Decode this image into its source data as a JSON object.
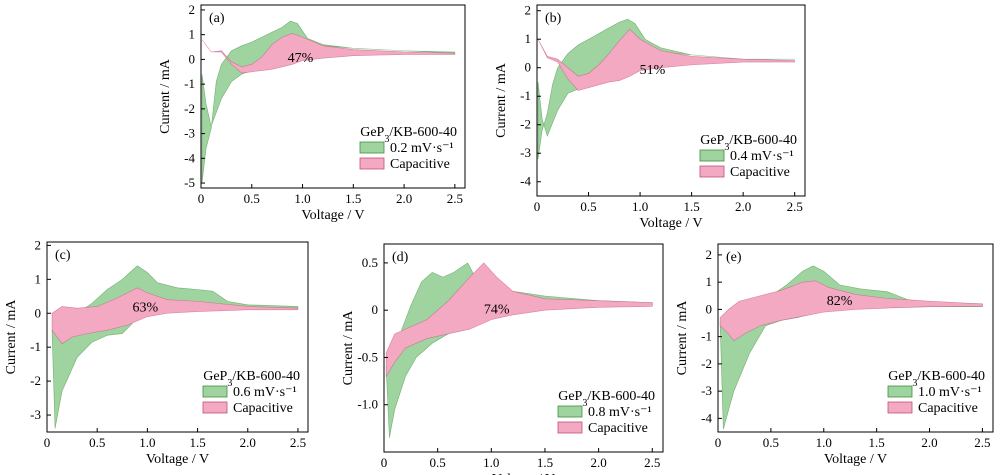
{
  "colors": {
    "rate_fill": "#9fd39f",
    "rate_edge": "#3f8f3f",
    "cap_fill": "#f4a9c3",
    "cap_edge": "#c0507a"
  },
  "chart_data": [
    {
      "type": "area",
      "label": "(a)",
      "percent": "47%",
      "xlabel": "Voltage / V",
      "ylabel": "Current / mA",
      "xlim": [
        0,
        2.6
      ],
      "ylim": [
        -5.2,
        2.2
      ],
      "xticks": [
        "0",
        "0.5",
        "1.0",
        "1.5",
        "2.0",
        "2.5"
      ],
      "xtick_values": [
        0,
        0.5,
        1.0,
        1.5,
        2.0,
        2.5
      ],
      "yticks": [
        "2",
        "1",
        "0",
        "-1",
        "-2",
        "-3",
        "-4",
        "-5"
      ],
      "ytick_values": [
        2,
        1,
        0,
        -1,
        -2,
        -3,
        -4,
        -5
      ],
      "legend_title": "GeP3/KB-600-40",
      "legend_title_main": "GeP",
      "legend_title_sub": "3",
      "legend_title_rest": "/KB-600-40",
      "series": [
        {
          "name": "0.2 mV·s⁻¹"
        },
        {
          "name": "Capacitive"
        }
      ],
      "cv_upper": [
        [
          0.01,
          -0.6
        ],
        [
          0.05,
          -1.8
        ],
        [
          0.1,
          -2.7
        ],
        [
          0.2,
          -1.6
        ],
        [
          0.3,
          -0.9
        ],
        [
          0.4,
          -0.6
        ],
        [
          0.5,
          -0.45
        ],
        [
          0.6,
          -0.3
        ],
        [
          0.7,
          -0.1
        ],
        [
          0.8,
          0.15
        ],
        [
          0.9,
          0.45
        ],
        [
          1.0,
          0.5
        ],
        [
          1.2,
          0.55
        ],
        [
          1.5,
          0.45
        ],
        [
          2.0,
          0.35
        ],
        [
          2.5,
          0.3
        ]
      ],
      "cv_lower": [
        [
          0.01,
          -5.0
        ],
        [
          0.05,
          -3.6
        ],
        [
          0.1,
          -2.8
        ],
        [
          0.15,
          -0.9
        ],
        [
          0.2,
          -0.2
        ],
        [
          0.3,
          0.35
        ],
        [
          0.4,
          0.55
        ],
        [
          0.5,
          0.7
        ],
        [
          0.6,
          0.9
        ],
        [
          0.7,
          1.1
        ],
        [
          0.8,
          1.3
        ],
        [
          0.88,
          1.55
        ],
        [
          0.95,
          1.45
        ],
        [
          1.05,
          0.85
        ],
        [
          1.2,
          0.6
        ],
        [
          1.5,
          0.45
        ],
        [
          2.0,
          0.35
        ],
        [
          2.5,
          0.25
        ]
      ],
      "cap_upper": [
        [
          0.01,
          0.8
        ],
        [
          0.1,
          0.3
        ],
        [
          0.2,
          0.35
        ],
        [
          0.3,
          -0.1
        ],
        [
          0.4,
          -0.3
        ],
        [
          0.5,
          -0.2
        ],
        [
          0.6,
          0.1
        ],
        [
          0.7,
          0.6
        ],
        [
          0.8,
          0.9
        ],
        [
          0.9,
          1.05
        ],
        [
          1.0,
          0.9
        ],
        [
          1.2,
          0.55
        ],
        [
          1.5,
          0.4
        ],
        [
          2.0,
          0.3
        ],
        [
          2.5,
          0.25
        ]
      ],
      "cap_lower": [
        [
          0.01,
          0.8
        ],
        [
          0.1,
          0.3
        ],
        [
          0.2,
          0.3
        ],
        [
          0.3,
          -0.2
        ],
        [
          0.4,
          -0.55
        ],
        [
          0.5,
          -0.5
        ],
        [
          0.6,
          -0.45
        ],
        [
          0.7,
          -0.4
        ],
        [
          0.8,
          -0.3
        ],
        [
          0.9,
          -0.2
        ],
        [
          1.0,
          -0.05
        ],
        [
          1.2,
          0.05
        ],
        [
          1.5,
          0.15
        ],
        [
          2.0,
          0.2
        ],
        [
          2.5,
          0.2
        ]
      ]
    },
    {
      "type": "area",
      "label": "(b)",
      "percent": "51%",
      "xlabel": "Voltage / V",
      "ylabel": "Current / mA",
      "xlim": [
        0,
        2.6
      ],
      "ylim": [
        -4.5,
        2.2
      ],
      "xticks": [
        "0",
        "0.5",
        "1.0",
        "1.5",
        "2.0",
        "2.5"
      ],
      "xtick_values": [
        0,
        0.5,
        1.0,
        1.5,
        2.0,
        2.5
      ],
      "yticks": [
        "2",
        "1",
        "0",
        "-1",
        "-2",
        "-3",
        "-4"
      ],
      "ytick_values": [
        2,
        1,
        0,
        -1,
        -2,
        -3,
        -4
      ],
      "legend_title": "GeP3/KB-600-40",
      "legend_title_main": "GeP",
      "legend_title_sub": "3",
      "legend_title_rest": "/KB-600-40",
      "series": [
        {
          "name": "0.4 mV·s⁻¹"
        },
        {
          "name": "Capacitive"
        }
      ],
      "cv_upper": [
        [
          0.01,
          -0.5
        ],
        [
          0.05,
          -1.8
        ],
        [
          0.1,
          -2.4
        ],
        [
          0.2,
          -1.5
        ],
        [
          0.3,
          -0.9
        ],
        [
          0.4,
          -0.75
        ],
        [
          0.5,
          -0.55
        ],
        [
          0.6,
          -0.35
        ],
        [
          0.7,
          -0.15
        ],
        [
          0.8,
          0.2
        ],
        [
          0.9,
          0.55
        ],
        [
          1.0,
          0.6
        ],
        [
          1.2,
          0.55
        ],
        [
          1.5,
          0.45
        ],
        [
          2.0,
          0.3
        ],
        [
          2.5,
          0.3
        ]
      ],
      "cv_lower": [
        [
          0.01,
          -3.2
        ],
        [
          0.05,
          -2.2
        ],
        [
          0.1,
          -1.6
        ],
        [
          0.15,
          -0.6
        ],
        [
          0.2,
          0.0
        ],
        [
          0.3,
          0.5
        ],
        [
          0.4,
          0.8
        ],
        [
          0.5,
          1.0
        ],
        [
          0.6,
          1.2
        ],
        [
          0.7,
          1.4
        ],
        [
          0.8,
          1.6
        ],
        [
          0.88,
          1.7
        ],
        [
          0.95,
          1.55
        ],
        [
          1.05,
          1.0
        ],
        [
          1.2,
          0.7
        ],
        [
          1.5,
          0.45
        ],
        [
          2.0,
          0.3
        ],
        [
          2.5,
          0.3
        ]
      ],
      "cap_upper": [
        [
          0.01,
          1.0
        ],
        [
          0.1,
          0.4
        ],
        [
          0.2,
          0.3
        ],
        [
          0.3,
          0.0
        ],
        [
          0.4,
          -0.3
        ],
        [
          0.5,
          -0.2
        ],
        [
          0.6,
          0.1
        ],
        [
          0.7,
          0.5
        ],
        [
          0.8,
          0.95
        ],
        [
          0.9,
          1.35
        ],
        [
          1.0,
          1.0
        ],
        [
          1.2,
          0.6
        ],
        [
          1.5,
          0.4
        ],
        [
          2.0,
          0.3
        ],
        [
          2.5,
          0.25
        ]
      ],
      "cap_lower": [
        [
          0.01,
          1.0
        ],
        [
          0.1,
          0.35
        ],
        [
          0.2,
          0.2
        ],
        [
          0.3,
          -0.4
        ],
        [
          0.4,
          -0.8
        ],
        [
          0.5,
          -0.7
        ],
        [
          0.6,
          -0.6
        ],
        [
          0.7,
          -0.5
        ],
        [
          0.8,
          -0.45
        ],
        [
          0.9,
          -0.3
        ],
        [
          1.0,
          -0.1
        ],
        [
          1.2,
          0.0
        ],
        [
          1.5,
          0.1
        ],
        [
          2.0,
          0.2
        ],
        [
          2.5,
          0.2
        ]
      ]
    },
    {
      "type": "area",
      "label": "(c)",
      "percent": "63%",
      "xlabel": "Voltage / V",
      "ylabel": "Current / mA",
      "xlim": [
        0,
        2.6
      ],
      "ylim": [
        -3.5,
        2.1
      ],
      "xticks": [
        "0",
        "0.5",
        "1.0",
        "1.5",
        "2.0",
        "2.5"
      ],
      "xtick_values": [
        0,
        0.5,
        1.0,
        1.5,
        2.0,
        2.5
      ],
      "yticks": [
        "2",
        "1",
        "0",
        "-1",
        "-2",
        "-3"
      ],
      "ytick_values": [
        2,
        1,
        0,
        -1,
        -2,
        -3
      ],
      "legend_title": "GeP3/KB-600-40",
      "legend_title_main": "GeP",
      "legend_title_sub": "3",
      "legend_title_rest": "/KB-600-40",
      "series": [
        {
          "name": "0.6 mV·s⁻¹"
        },
        {
          "name": "Capacitive"
        }
      ],
      "cv_upper": [
        [
          0.05,
          -0.5
        ],
        [
          0.08,
          -3.4
        ],
        [
          0.15,
          -2.3
        ],
        [
          0.3,
          -1.3
        ],
        [
          0.45,
          -0.85
        ],
        [
          0.6,
          -0.65
        ],
        [
          0.75,
          -0.6
        ],
        [
          0.85,
          -0.3
        ],
        [
          0.95,
          0.1
        ],
        [
          1.1,
          0.3
        ],
        [
          1.3,
          0.35
        ],
        [
          1.5,
          0.3
        ],
        [
          1.8,
          0.2
        ],
        [
          2.5,
          0.15
        ]
      ],
      "cv_lower": [
        [
          0.05,
          -0.5
        ],
        [
          0.1,
          -0.4
        ],
        [
          0.2,
          -0.2
        ],
        [
          0.3,
          0.0
        ],
        [
          0.45,
          0.3
        ],
        [
          0.6,
          0.7
        ],
        [
          0.75,
          1.0
        ],
        [
          0.9,
          1.4
        ],
        [
          1.0,
          1.2
        ],
        [
          1.1,
          0.9
        ],
        [
          1.3,
          0.75
        ],
        [
          1.5,
          0.7
        ],
        [
          1.65,
          0.65
        ],
        [
          1.8,
          0.35
        ],
        [
          2.0,
          0.25
        ],
        [
          2.5,
          0.2
        ]
      ],
      "cap_upper": [
        [
          0.05,
          0.0
        ],
        [
          0.15,
          0.2
        ],
        [
          0.3,
          0.15
        ],
        [
          0.5,
          0.2
        ],
        [
          0.7,
          0.45
        ],
        [
          0.9,
          0.75
        ],
        [
          1.0,
          0.6
        ],
        [
          1.2,
          0.4
        ],
        [
          1.5,
          0.35
        ],
        [
          2.0,
          0.2
        ],
        [
          2.5,
          0.15
        ]
      ],
      "cap_lower": [
        [
          0.05,
          -0.5
        ],
        [
          0.15,
          -0.9
        ],
        [
          0.25,
          -0.7
        ],
        [
          0.4,
          -0.6
        ],
        [
          0.6,
          -0.5
        ],
        [
          0.8,
          -0.35
        ],
        [
          1.0,
          -0.1
        ],
        [
          1.2,
          0.0
        ],
        [
          1.5,
          0.05
        ],
        [
          2.0,
          0.1
        ],
        [
          2.5,
          0.1
        ]
      ]
    },
    {
      "type": "area",
      "label": "(d)",
      "percent": "74%",
      "xlabel": "Voltage / V",
      "ylabel": "Current / mA",
      "xlim": [
        0,
        2.6
      ],
      "ylim": [
        -1.5,
        0.7
      ],
      "xticks": [
        "0",
        "0.5",
        "1.0",
        "1.5",
        "2.0",
        "2.5"
      ],
      "xtick_values": [
        0,
        0.5,
        1.0,
        1.5,
        2.0,
        2.5
      ],
      "yticks": [
        "0.5",
        "0",
        "-0.5",
        "-1.0"
      ],
      "ytick_values": [
        0.5,
        0,
        -0.5,
        -1.0
      ],
      "legend_title": "GeP3/KB-600-40",
      "legend_title_main": "GeP",
      "legend_title_sub": "3",
      "legend_title_rest": "/KB-600-40",
      "series": [
        {
          "name": "0.8 mV·s⁻¹"
        },
        {
          "name": "Capacitive"
        }
      ],
      "cv_upper": [
        [
          0.02,
          -0.6
        ],
        [
          0.05,
          -1.35
        ],
        [
          0.1,
          -1.05
        ],
        [
          0.2,
          -0.7
        ],
        [
          0.3,
          -0.5
        ],
        [
          0.45,
          -0.35
        ],
        [
          0.6,
          -0.25
        ],
        [
          0.75,
          -0.1
        ],
        [
          0.85,
          0.0
        ],
        [
          1.0,
          0.05
        ],
        [
          1.5,
          0.05
        ],
        [
          2.0,
          0.05
        ],
        [
          2.5,
          0.05
        ]
      ],
      "cv_lower": [
        [
          0.02,
          -0.6
        ],
        [
          0.08,
          -0.45
        ],
        [
          0.15,
          -0.25
        ],
        [
          0.25,
          0.05
        ],
        [
          0.35,
          0.3
        ],
        [
          0.45,
          0.4
        ],
        [
          0.55,
          0.35
        ],
        [
          0.65,
          0.4
        ],
        [
          0.78,
          0.5
        ],
        [
          0.85,
          0.35
        ],
        [
          0.95,
          0.3
        ],
        [
          1.2,
          0.2
        ],
        [
          1.5,
          0.15
        ],
        [
          2.0,
          0.1
        ],
        [
          2.5,
          0.08
        ]
      ],
      "cap_upper": [
        [
          0.02,
          -0.45
        ],
        [
          0.1,
          -0.25
        ],
        [
          0.2,
          -0.2
        ],
        [
          0.4,
          -0.1
        ],
        [
          0.6,
          0.1
        ],
        [
          0.8,
          0.35
        ],
        [
          0.93,
          0.5
        ],
        [
          1.05,
          0.35
        ],
        [
          1.2,
          0.2
        ],
        [
          1.5,
          0.12
        ],
        [
          2.0,
          0.1
        ],
        [
          2.5,
          0.08
        ]
      ],
      "cap_lower": [
        [
          0.02,
          -0.7
        ],
        [
          0.1,
          -0.55
        ],
        [
          0.2,
          -0.4
        ],
        [
          0.4,
          -0.3
        ],
        [
          0.6,
          -0.25
        ],
        [
          0.8,
          -0.2
        ],
        [
          1.0,
          -0.1
        ],
        [
          1.2,
          -0.05
        ],
        [
          1.5,
          0.0
        ],
        [
          2.0,
          0.03
        ],
        [
          2.5,
          0.04
        ]
      ]
    },
    {
      "type": "area",
      "label": "(e)",
      "percent": "82%",
      "xlabel": "Voltage / V",
      "ylabel": "Current / mA",
      "xlim": [
        0,
        2.6
      ],
      "ylim": [
        -4.5,
        2.4
      ],
      "xticks": [
        "0",
        "0.5",
        "1.0",
        "1.5",
        "2.0",
        "2.5"
      ],
      "xtick_values": [
        0,
        0.5,
        1.0,
        1.5,
        2.0,
        2.5
      ],
      "yticks": [
        "2",
        "1",
        "0",
        "-1",
        "-2",
        "-3",
        "-4"
      ],
      "ytick_values": [
        2,
        1,
        0,
        -1,
        -2,
        -3,
        -4
      ],
      "legend_title": "GeP3/KB-600-40",
      "legend_title_main": "GeP",
      "legend_title_sub": "3",
      "legend_title_rest": "/KB-600-40",
      "series": [
        {
          "name": "1.0 mV·s⁻¹"
        },
        {
          "name": "Capacitive"
        }
      ],
      "cv_upper": [
        [
          0.02,
          -0.5
        ],
        [
          0.05,
          -4.4
        ],
        [
          0.15,
          -3.0
        ],
        [
          0.3,
          -1.6
        ],
        [
          0.45,
          -0.6
        ],
        [
          0.6,
          -0.4
        ],
        [
          0.75,
          -0.3
        ],
        [
          0.9,
          -0.15
        ],
        [
          1.1,
          0.05
        ],
        [
          1.5,
          0.05
        ],
        [
          2.0,
          0.1
        ],
        [
          2.5,
          0.1
        ]
      ],
      "cv_lower": [
        [
          0.02,
          -0.5
        ],
        [
          0.1,
          -0.3
        ],
        [
          0.2,
          -0.1
        ],
        [
          0.35,
          0.2
        ],
        [
          0.5,
          0.5
        ],
        [
          0.65,
          0.9
        ],
        [
          0.8,
          1.4
        ],
        [
          0.9,
          1.6
        ],
        [
          1.0,
          1.4
        ],
        [
          1.15,
          0.9
        ],
        [
          1.35,
          0.75
        ],
        [
          1.6,
          0.65
        ],
        [
          1.8,
          0.35
        ],
        [
          2.0,
          0.25
        ],
        [
          2.5,
          0.2
        ]
      ],
      "cap_upper": [
        [
          0.02,
          -0.3
        ],
        [
          0.1,
          0.0
        ],
        [
          0.2,
          0.3
        ],
        [
          0.4,
          0.5
        ],
        [
          0.6,
          0.7
        ],
        [
          0.8,
          1.0
        ],
        [
          0.92,
          1.05
        ],
        [
          1.05,
          0.8
        ],
        [
          1.3,
          0.55
        ],
        [
          1.6,
          0.4
        ],
        [
          2.0,
          0.3
        ],
        [
          2.5,
          0.2
        ]
      ],
      "cap_lower": [
        [
          0.02,
          -0.6
        ],
        [
          0.1,
          -0.9
        ],
        [
          0.15,
          -1.15
        ],
        [
          0.25,
          -0.9
        ],
        [
          0.4,
          -0.6
        ],
        [
          0.6,
          -0.4
        ],
        [
          0.8,
          -0.25
        ],
        [
          1.0,
          -0.1
        ],
        [
          1.3,
          0.0
        ],
        [
          1.6,
          0.05
        ],
        [
          2.0,
          0.1
        ],
        [
          2.5,
          0.12
        ]
      ]
    }
  ]
}
